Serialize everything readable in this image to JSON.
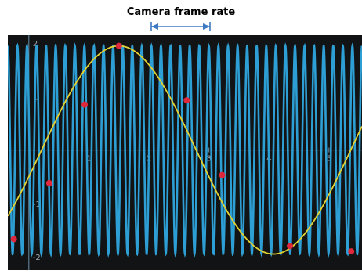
{
  "title": "Camera frame rate",
  "colors": {
    "fast_wave": "#2e9fd4",
    "slow_wave": "#e3d232",
    "sample_points": "#e0283c",
    "arrow": "#3d79c2",
    "background": "#111315",
    "axis": "#6a8fa8"
  },
  "chart_data": {
    "type": "line",
    "title": "",
    "xlabel": "",
    "ylabel": "",
    "xlim": [
      -0.35,
      5.55
    ],
    "ylim": [
      -2.25,
      2.15
    ],
    "xticks": [
      "1",
      "2",
      "3",
      "4",
      "5"
    ],
    "yticks": [
      "2",
      "1",
      "-1",
      "-2"
    ],
    "series": [
      {
        "kind": "fast-oscillation",
        "amplitude": 1.95,
        "cycles": 37,
        "values_range": [
          -1.95,
          1.95
        ]
      },
      {
        "kind": "alias-sine",
        "amplitude": 1.95,
        "period": 5.15,
        "peak_x": 1.5
      }
    ],
    "sample_points": [
      {
        "x": -0.25,
        "y": -1.67
      },
      {
        "x": 0.34,
        "y": -0.62
      },
      {
        "x": 0.93,
        "y": 0.85
      },
      {
        "x": 1.5,
        "y": 1.95
      },
      {
        "x": 2.63,
        "y": 0.93
      },
      {
        "x": 3.22,
        "y": -0.47
      },
      {
        "x": 4.35,
        "y": -1.8
      },
      {
        "x": 5.37,
        "y": -1.9
      }
    ]
  }
}
